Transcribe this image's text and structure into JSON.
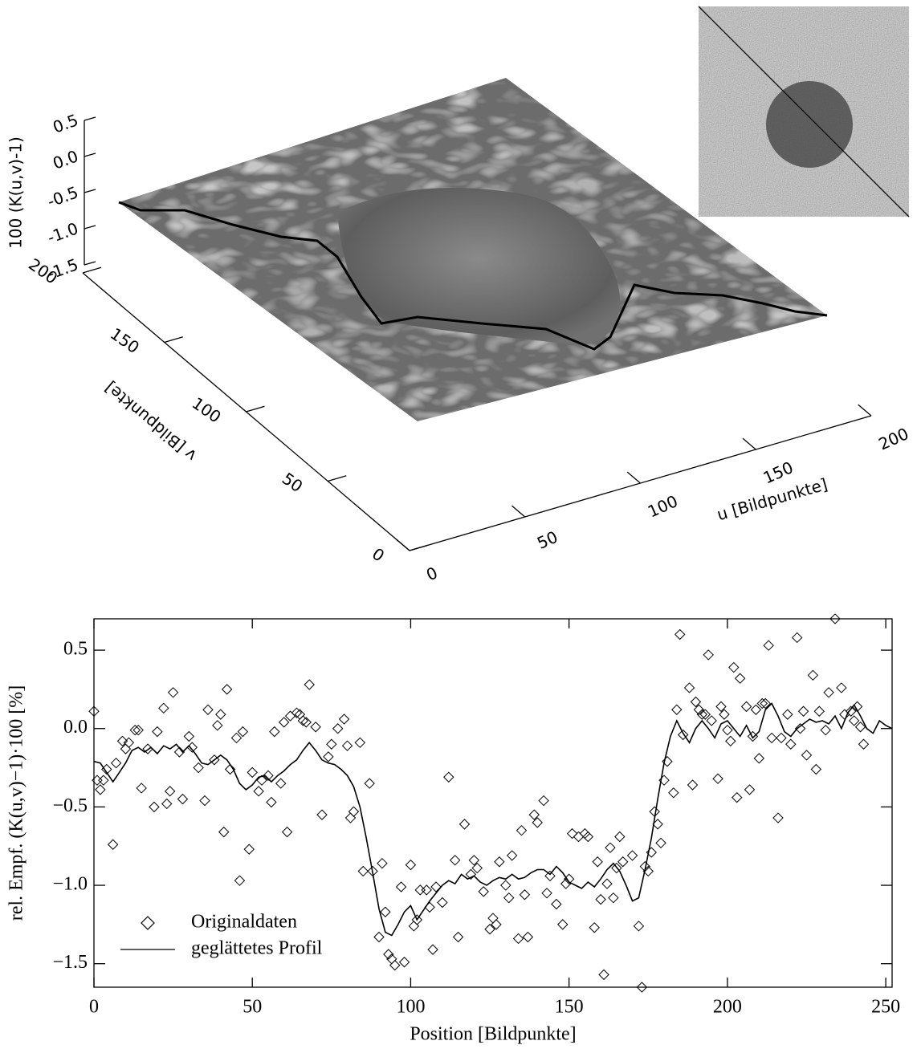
{
  "chart_data": [
    {
      "type": "surface3d",
      "xlabel": "u [Bildpunkte]",
      "ylabel": "v [Bildpunkte]",
      "zlabel": "100 (K(u,v)-1)",
      "xlim": [
        0,
        200
      ],
      "xticks": [
        0,
        50,
        100,
        150,
        200
      ],
      "ylim": [
        0,
        200
      ],
      "yticks": [
        0,
        50,
        100,
        150,
        200
      ],
      "zlim": [
        -1.5,
        0.5
      ],
      "zticks": [
        0.5,
        {
          "value": 0,
          "label": "0.0"
        },
        -0.5,
        {
          "value": -1,
          "label": "-1.0"
        },
        -1.5
      ]
    },
    {
      "type": "line",
      "xlabel": "Position [Bildpunkte]",
      "ylabel": "rel. Empf. (K(u,v)−1)·100 [%]",
      "xlim": [
        0,
        252
      ],
      "xticks": [
        0,
        50,
        100,
        150,
        200,
        250
      ],
      "ylim": [
        -1.65,
        0.7
      ],
      "yticks": [
        {
          "value": -1.5,
          "label": "−1.5"
        },
        {
          "value": -1,
          "label": "−1.0"
        },
        {
          "value": -0.5,
          "label": "−0.5"
        },
        {
          "value": 0,
          "label": "0.0"
        },
        0.5
      ],
      "legend": "lower left",
      "series": [
        {
          "name": "Originaldaten",
          "type": "scatter",
          "marker": "diamond",
          "color": "#000000",
          "x": [
            0,
            1,
            2,
            3,
            4,
            6,
            7,
            9,
            10,
            11,
            13,
            14,
            15,
            17,
            19,
            20,
            22,
            23,
            24,
            25,
            27,
            28,
            30,
            31,
            33,
            35,
            36,
            38,
            39,
            40,
            41,
            42,
            43,
            45,
            46,
            47,
            49,
            50,
            52,
            53,
            55,
            56,
            57,
            59,
            60,
            61,
            62,
            64,
            65,
            66,
            67,
            68,
            70,
            72,
            74,
            75,
            77,
            79,
            80,
            81,
            82,
            84,
            85,
            87,
            88,
            90,
            91,
            92,
            93,
            94,
            95,
            97,
            98,
            100,
            101,
            102,
            103,
            105,
            106,
            107,
            108,
            110,
            112,
            114,
            115,
            117,
            119,
            120,
            121,
            123,
            125,
            126,
            127,
            128,
            130,
            131,
            132,
            134,
            135,
            136,
            137,
            139,
            140,
            142,
            143,
            144,
            146,
            148,
            149,
            150,
            151,
            153,
            155,
            156,
            158,
            159,
            160,
            161,
            162,
            163,
            164,
            165,
            166,
            167,
            170,
            172,
            173,
            174,
            175,
            176,
            177,
            178,
            179,
            180,
            181,
            183,
            184,
            185,
            186,
            188,
            189,
            190,
            191,
            192,
            193,
            194,
            195,
            197,
            198,
            199,
            200,
            201,
            202,
            203,
            204,
            206,
            207,
            208,
            209,
            210,
            211,
            212,
            213,
            214,
            216,
            217,
            219,
            220,
            222,
            223,
            224,
            225,
            227,
            228,
            229,
            231,
            232,
            234,
            236,
            237,
            239,
            240,
            241,
            242,
            243
          ],
          "values": [
            0.11,
            -0.33,
            -0.39,
            -0.33,
            -0.26,
            -0.74,
            -0.22,
            -0.08,
            -0.13,
            -0.09,
            -0.01,
            -0.01,
            -0.38,
            -0.13,
            -0.5,
            -0.02,
            0.13,
            -0.48,
            -0.4,
            0.23,
            -0.15,
            -0.45,
            -0.05,
            -0.12,
            -0.25,
            -0.46,
            0.12,
            -0.2,
            0.02,
            0.09,
            -0.66,
            0.25,
            -0.26,
            -0.06,
            -0.97,
            -0.02,
            -0.77,
            -0.28,
            -0.4,
            -0.33,
            -0.3,
            -0.47,
            -0.02,
            -0.35,
            0.04,
            -0.66,
            0.08,
            0.1,
            0.09,
            0.05,
            0.04,
            0.28,
            0.01,
            -0.55,
            -0.18,
            -0.1,
            0.0,
            0.06,
            -0.11,
            -0.57,
            -0.53,
            -0.09,
            -0.91,
            -0.35,
            -0.91,
            -1.33,
            -0.86,
            -1.17,
            -1.44,
            -1.47,
            -1.51,
            -1.01,
            -1.49,
            -0.87,
            -1.26,
            -1.22,
            -1.03,
            -1.03,
            -1.14,
            -1.41,
            -1.01,
            -1.11,
            -0.31,
            -0.84,
            -1.33,
            -0.61,
            -0.93,
            -0.84,
            -0.89,
            -1.04,
            -1.28,
            -1.21,
            -1.25,
            -0.85,
            -1.0,
            -1.08,
            -0.81,
            -1.34,
            -0.65,
            -1.06,
            -1.33,
            -0.55,
            -0.6,
            -0.46,
            -1.05,
            -0.94,
            -1.12,
            -1.25,
            -0.99,
            -0.96,
            -0.67,
            -0.69,
            -0.67,
            -0.69,
            -1.27,
            -0.85,
            -1.09,
            -1.57,
            -0.99,
            -0.76,
            -1.08,
            -0.89,
            -0.69,
            -0.85,
            -0.81,
            -1.26,
            -1.65,
            -0.88,
            -0.91,
            -0.79,
            -0.53,
            -0.61,
            -0.73,
            -0.33,
            -0.21,
            -0.41,
            0.12,
            0.6,
            -0.04,
            0.26,
            -0.36,
            0.17,
            0.12,
            0.09,
            0.09,
            0.47,
            0.05,
            -0.32,
            0.14,
            0.09,
            -0.01,
            -0.08,
            0.39,
            -0.44,
            0.32,
            0.14,
            -0.39,
            -0.05,
            0.12,
            -0.19,
            0.16,
            0.16,
            0.53,
            -0.06,
            -0.57,
            -0.06,
            0.09,
            -0.1,
            0.58,
            0.0,
            0.11,
            -0.17,
            0.34,
            -0.26,
            0.11,
            -0.01,
            0.23,
            0.7,
            0.26,
            0.09,
            0.11,
            0.05,
            0.14,
            0.01,
            -0.1
          ]
        },
        {
          "name": "geglättetes Profil",
          "type": "line",
          "color": "#000000",
          "x": [
            0,
            2,
            4,
            6,
            8,
            10,
            12,
            14,
            16,
            18,
            20,
            22,
            24,
            26,
            28,
            30,
            32,
            34,
            36,
            38,
            40,
            42,
            44,
            46,
            48,
            50,
            52,
            54,
            56,
            58,
            60,
            62,
            64,
            66,
            68,
            70,
            72,
            74,
            76,
            78,
            80,
            82,
            84,
            86,
            88,
            90,
            92,
            94,
            96,
            98,
            100,
            102,
            104,
            106,
            108,
            110,
            112,
            114,
            116,
            118,
            120,
            122,
            124,
            126,
            128,
            130,
            132,
            134,
            136,
            138,
            140,
            142,
            144,
            146,
            148,
            150,
            152,
            154,
            156,
            158,
            160,
            162,
            164,
            166,
            168,
            170,
            172,
            174,
            176,
            178,
            180,
            182,
            184,
            186,
            188,
            190,
            192,
            194,
            196,
            198,
            200,
            202,
            204,
            206,
            208,
            210,
            212,
            214,
            216,
            218,
            220,
            222,
            224,
            226,
            228,
            230,
            232,
            234,
            236,
            238,
            240,
            242,
            244,
            246,
            248,
            250,
            252
          ],
          "values": [
            -0.21,
            -0.22,
            -0.28,
            -0.34,
            -0.28,
            -0.22,
            -0.14,
            -0.12,
            -0.15,
            -0.12,
            -0.16,
            -0.11,
            -0.13,
            -0.1,
            -0.15,
            -0.11,
            -0.16,
            -0.22,
            -0.23,
            -0.2,
            -0.17,
            -0.2,
            -0.26,
            -0.35,
            -0.39,
            -0.36,
            -0.31,
            -0.3,
            -0.34,
            -0.3,
            -0.27,
            -0.23,
            -0.2,
            -0.14,
            -0.09,
            -0.14,
            -0.2,
            -0.22,
            -0.23,
            -0.26,
            -0.3,
            -0.37,
            -0.5,
            -0.7,
            -0.92,
            -1.15,
            -1.3,
            -1.32,
            -1.25,
            -1.17,
            -1.13,
            -1.22,
            -1.16,
            -1.1,
            -1.05,
            -1.0,
            -0.97,
            -0.99,
            -0.93,
            -0.96,
            -0.94,
            -0.98,
            -1.0,
            -0.97,
            -0.95,
            -0.96,
            -0.93,
            -0.96,
            -0.95,
            -0.92,
            -0.9,
            -0.9,
            -0.93,
            -0.88,
            -0.92,
            -0.98,
            -1.0,
            -1.02,
            -0.98,
            -1.01,
            -0.96,
            -0.9,
            -0.86,
            -0.91,
            -1.0,
            -1.1,
            -1.08,
            -0.9,
            -0.7,
            -0.45,
            -0.22,
            -0.05,
            0.05,
            -0.03,
            -0.09,
            0.0,
            0.05,
            0.0,
            -0.06,
            0.03,
            0.05,
            0.0,
            -0.05,
            0.02,
            -0.06,
            -0.02,
            0.12,
            0.16,
            0.08,
            -0.02,
            -0.05,
            0.0,
            0.03,
            0.06,
            0.04,
            0.05,
            0.03,
            0.08,
            0.0,
            0.1,
            0.15,
            0.08,
            0.0,
            -0.03,
            0.05,
            0.02,
            0.0
          ]
        }
      ]
    }
  ]
}
